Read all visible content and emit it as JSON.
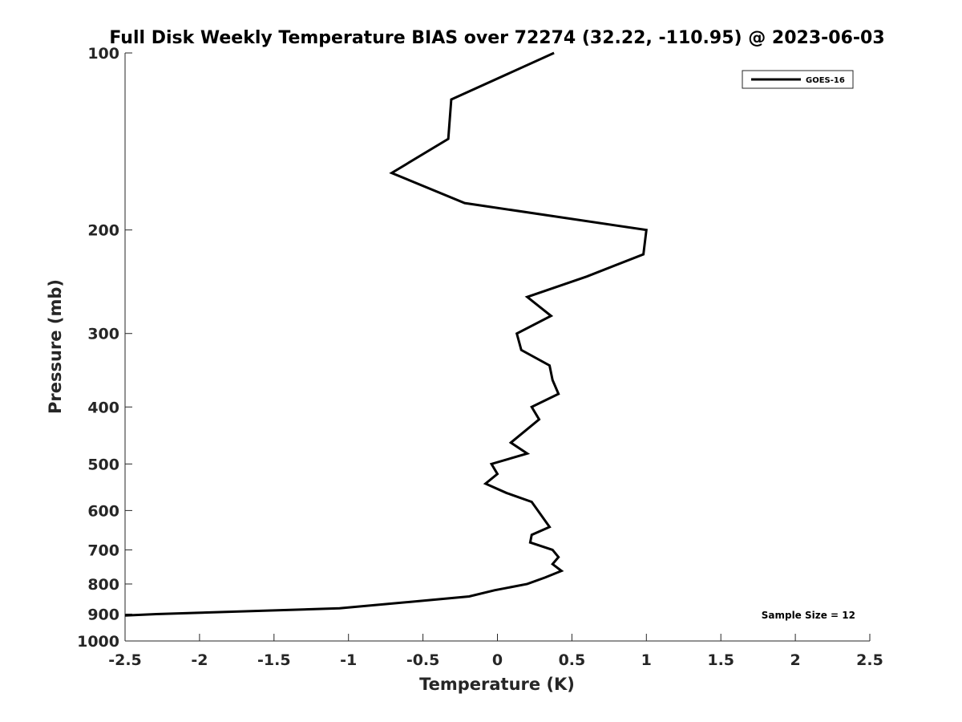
{
  "chart_data": {
    "type": "line",
    "title": "Full Disk Weekly Temperature BIAS over 72274 (32.22, -110.95) @ 2023-06-03",
    "xlabel": "Temperature (K)",
    "ylabel": "Pressure (mb)",
    "xlim": [
      -2.5,
      2.5
    ],
    "ylim": [
      100,
      1000
    ],
    "yscale": "log",
    "y_reversed": true,
    "xticks": [
      "-2.5",
      "-2",
      "-1.5",
      "-1",
      "-0.5",
      "0",
      "0.5",
      "1",
      "1.5",
      "2",
      "2.5"
    ],
    "xtick_values": [
      -2.5,
      -2,
      -1.5,
      -1,
      -0.5,
      0,
      0.5,
      1,
      1.5,
      2,
      2.5
    ],
    "yticks": [
      "100",
      "200",
      "300",
      "400",
      "500",
      "600",
      "700",
      "800",
      "900",
      "1000"
    ],
    "ytick_values": [
      100,
      200,
      300,
      400,
      500,
      600,
      700,
      800,
      900,
      1000
    ],
    "grid": false,
    "legend": {
      "entries": [
        "GOES-16"
      ],
      "placement": "top-right"
    },
    "annotation": "Sample Size = 12",
    "series": [
      {
        "name": "GOES-16",
        "color": "#000000",
        "temperature": [
          0.38,
          -0.31,
          -0.33,
          -0.71,
          -0.22,
          1.0,
          0.98,
          0.6,
          0.2,
          0.36,
          0.13,
          0.16,
          0.35,
          0.37,
          0.41,
          0.23,
          0.28,
          0.09,
          0.2,
          -0.04,
          0.0,
          -0.08,
          0.06,
          0.23,
          0.35,
          0.23,
          0.22,
          0.37,
          0.41,
          0.37,
          0.43,
          0.32,
          0.2,
          -0.02,
          -0.19,
          -1.06,
          -2.29,
          -2.5
        ],
        "pressure": [
          100,
          120,
          140,
          160,
          180,
          200,
          220,
          240,
          260,
          280,
          300,
          320,
          340,
          360,
          380,
          400,
          420,
          460,
          480,
          500,
          520,
          540,
          560,
          580,
          640,
          660,
          680,
          700,
          720,
          740,
          760,
          780,
          800,
          820,
          840,
          880,
          900,
          905
        ]
      }
    ]
  }
}
